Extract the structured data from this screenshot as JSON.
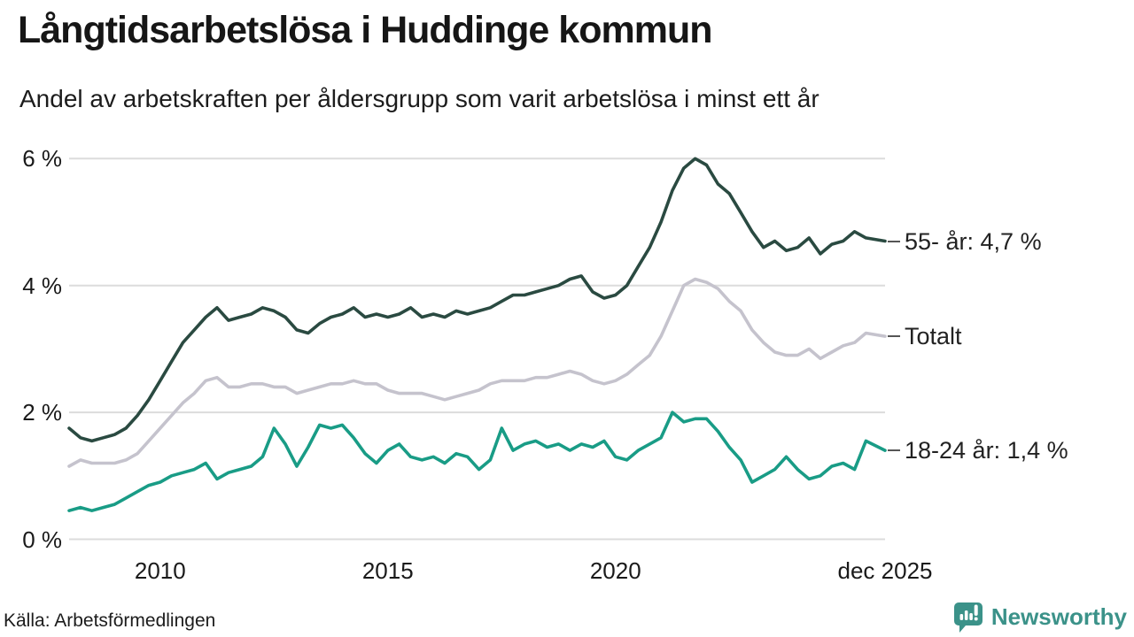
{
  "header": {
    "title": "Långtidsarbetslösa i Huddinge kommun",
    "subtitle": "Andel av arbetskraften per åldersgrupp som varit arbetslösa i minst ett år"
  },
  "footer": {
    "source": "Källa: Arbetsförmedlingen",
    "logo_text": "Newsworthy"
  },
  "colors": {
    "series_55": "#2a4a41",
    "series_total": "#c5c3cd",
    "series_18_24": "#199c86",
    "gridline": "#dcdcdc",
    "text": "#1a1a1a",
    "brand_teal": "#3b9289"
  },
  "chart_data": {
    "type": "line",
    "title": "Långtidsarbetslösa i Huddinge kommun",
    "subtitle": "Andel av arbetskraften per åldersgrupp som varit arbetslösa i minst ett år",
    "xlabel": "",
    "ylabel": "",
    "grid": true,
    "legend_position": "right-end-labels",
    "x_range": [
      2008.0,
      2025.92
    ],
    "ylim": [
      0,
      6
    ],
    "y_ticks": [
      {
        "label": "0 %",
        "v": 0
      },
      {
        "label": "2 %",
        "v": 2
      },
      {
        "label": "4 %",
        "v": 4
      },
      {
        "label": "6 %",
        "v": 6
      }
    ],
    "x_ticks": [
      {
        "label": "2010",
        "t": 2010
      },
      {
        "label": "2015",
        "t": 2015
      },
      {
        "label": "2020",
        "t": 2020
      },
      {
        "label": "dec 2025",
        "t": 2025.92
      }
    ],
    "x": [
      2008.0,
      2008.25,
      2008.5,
      2008.75,
      2009.0,
      2009.25,
      2009.5,
      2009.75,
      2010.0,
      2010.25,
      2010.5,
      2010.75,
      2011.0,
      2011.25,
      2011.5,
      2011.75,
      2012.0,
      2012.25,
      2012.5,
      2012.75,
      2013.0,
      2013.25,
      2013.5,
      2013.75,
      2014.0,
      2014.25,
      2014.5,
      2014.75,
      2015.0,
      2015.25,
      2015.5,
      2015.75,
      2016.0,
      2016.25,
      2016.5,
      2016.75,
      2017.0,
      2017.25,
      2017.5,
      2017.75,
      2018.0,
      2018.25,
      2018.5,
      2018.75,
      2019.0,
      2019.25,
      2019.5,
      2019.75,
      2020.0,
      2020.25,
      2020.5,
      2020.75,
      2021.0,
      2021.25,
      2021.5,
      2021.75,
      2022.0,
      2022.25,
      2022.5,
      2022.75,
      2023.0,
      2023.25,
      2023.5,
      2023.75,
      2024.0,
      2024.25,
      2024.5,
      2024.75,
      2025.0,
      2025.25,
      2025.5,
      2025.92
    ],
    "series": [
      {
        "name": "55- år",
        "end_label": "55- år: 4,7 %",
        "end_value": "4,7 %",
        "color": "#2a4a41",
        "values": [
          1.75,
          1.6,
          1.55,
          1.6,
          1.65,
          1.75,
          1.95,
          2.2,
          2.5,
          2.8,
          3.1,
          3.3,
          3.5,
          3.65,
          3.45,
          3.5,
          3.55,
          3.65,
          3.6,
          3.5,
          3.3,
          3.25,
          3.4,
          3.5,
          3.55,
          3.65,
          3.5,
          3.55,
          3.5,
          3.55,
          3.65,
          3.5,
          3.55,
          3.5,
          3.6,
          3.55,
          3.6,
          3.65,
          3.75,
          3.85,
          3.85,
          3.9,
          3.95,
          4.0,
          4.1,
          4.15,
          3.9,
          3.8,
          3.85,
          4.0,
          4.3,
          4.6,
          5.0,
          5.5,
          5.85,
          6.0,
          5.9,
          5.6,
          5.45,
          5.15,
          4.85,
          4.6,
          4.7,
          4.55,
          4.6,
          4.75,
          4.5,
          4.65,
          4.7,
          4.85,
          4.75,
          4.7
        ]
      },
      {
        "name": "Totalt",
        "end_label": "Totalt",
        "end_value": "",
        "color": "#c5c3cd",
        "values": [
          1.15,
          1.25,
          1.2,
          1.2,
          1.2,
          1.25,
          1.35,
          1.55,
          1.75,
          1.95,
          2.15,
          2.3,
          2.5,
          2.55,
          2.4,
          2.4,
          2.45,
          2.45,
          2.4,
          2.4,
          2.3,
          2.35,
          2.4,
          2.45,
          2.45,
          2.5,
          2.45,
          2.45,
          2.35,
          2.3,
          2.3,
          2.3,
          2.25,
          2.2,
          2.25,
          2.3,
          2.35,
          2.45,
          2.5,
          2.5,
          2.5,
          2.55,
          2.55,
          2.6,
          2.65,
          2.6,
          2.5,
          2.45,
          2.5,
          2.6,
          2.75,
          2.9,
          3.2,
          3.6,
          4.0,
          4.1,
          4.05,
          3.95,
          3.75,
          3.6,
          3.3,
          3.1,
          2.95,
          2.9,
          2.9,
          3.0,
          2.85,
          2.95,
          3.05,
          3.1,
          3.25,
          3.2
        ]
      },
      {
        "name": "18-24 år",
        "end_label": "18-24 år: 1,4 %",
        "end_value": "1,4 %",
        "color": "#199c86",
        "values": [
          0.45,
          0.5,
          0.45,
          0.5,
          0.55,
          0.65,
          0.75,
          0.85,
          0.9,
          1.0,
          1.05,
          1.1,
          1.2,
          0.95,
          1.05,
          1.1,
          1.15,
          1.3,
          1.75,
          1.5,
          1.15,
          1.45,
          1.8,
          1.75,
          1.8,
          1.6,
          1.35,
          1.2,
          1.4,
          1.5,
          1.3,
          1.25,
          1.3,
          1.2,
          1.35,
          1.3,
          1.1,
          1.25,
          1.75,
          1.4,
          1.5,
          1.55,
          1.45,
          1.5,
          1.4,
          1.5,
          1.45,
          1.55,
          1.3,
          1.25,
          1.4,
          1.5,
          1.6,
          2.0,
          1.85,
          1.9,
          1.9,
          1.7,
          1.45,
          1.25,
          0.9,
          1.0,
          1.1,
          1.3,
          1.1,
          0.95,
          1.0,
          1.15,
          1.2,
          1.1,
          1.55,
          1.4
        ]
      }
    ]
  }
}
